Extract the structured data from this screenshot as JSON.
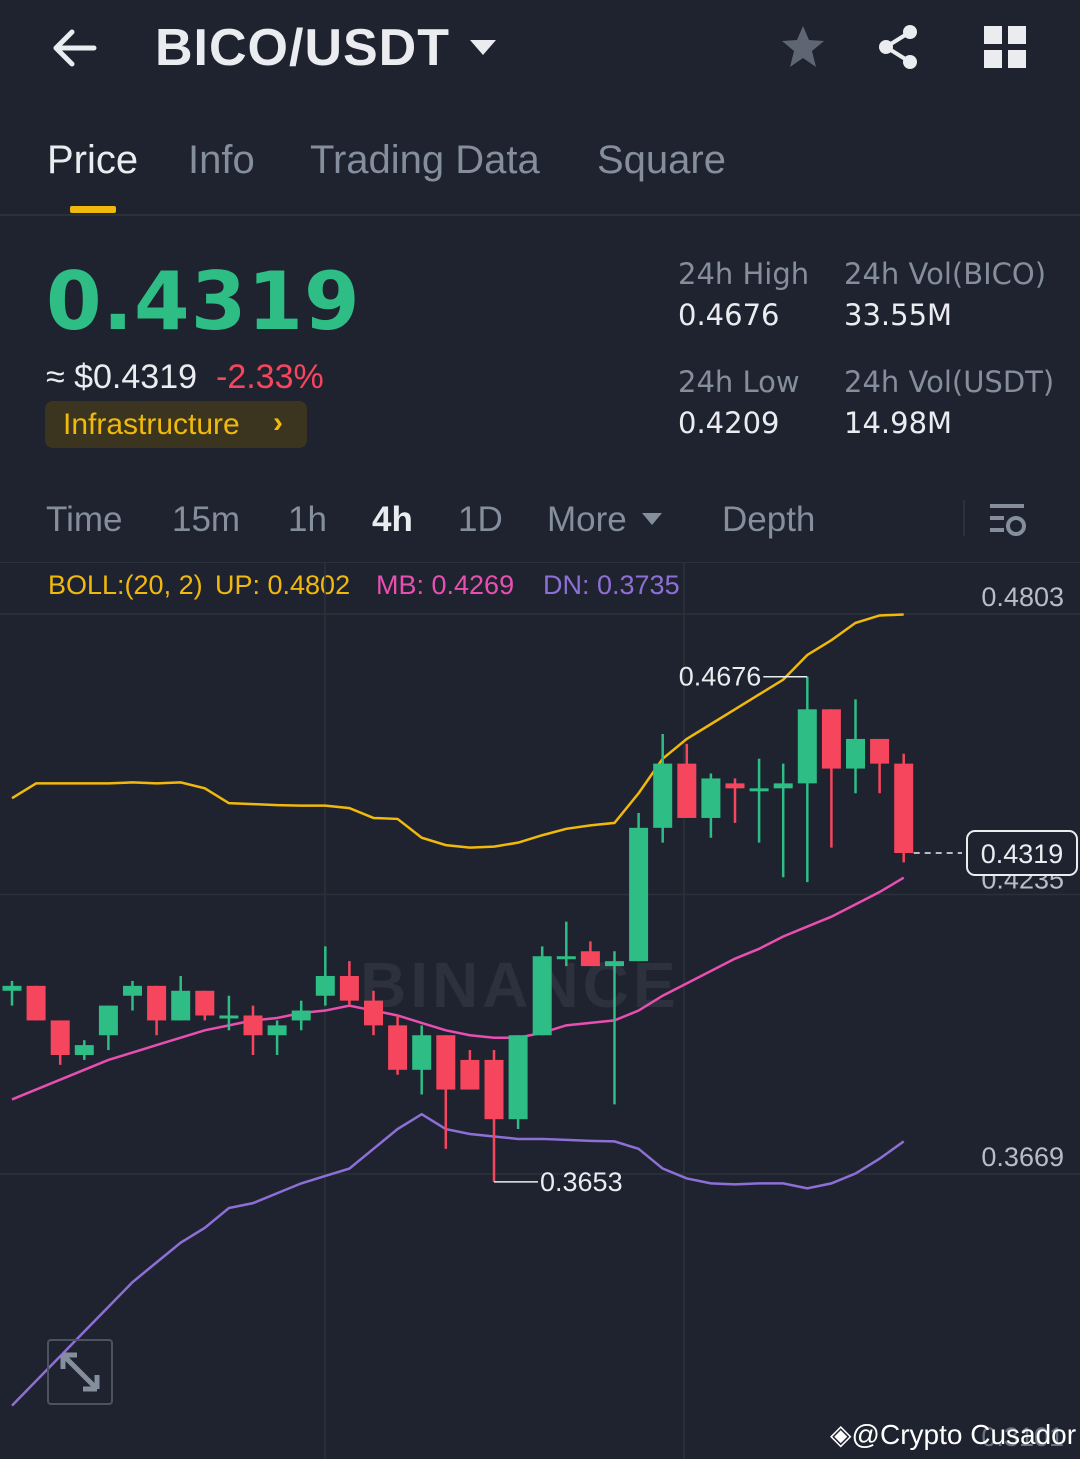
{
  "header": {
    "pair": "BICO/USDT",
    "back_icon": "arrow-left-icon",
    "caret_icon": "caret-down-icon",
    "star_icon": "star-icon",
    "share_icon": "share-icon",
    "menu_icon": "grid-icon"
  },
  "tabs": [
    {
      "label": "Price",
      "active": true
    },
    {
      "label": "Info",
      "active": false
    },
    {
      "label": "Trading Data",
      "active": false
    },
    {
      "label": "Square",
      "active": false
    }
  ],
  "price": {
    "last": "0.4319",
    "usd": "≈ $0.4319",
    "change": "-2.33%",
    "tag": "Infrastructure",
    "tag_arrow": "›",
    "stats": {
      "high_label": "24h High",
      "high_value": "0.4676",
      "low_label": "24h Low",
      "low_value": "0.4209",
      "vol_base_label": "24h Vol(BICO)",
      "vol_base_value": "33.55M",
      "vol_quote_label": "24h Vol(USDT)",
      "vol_quote_value": "14.98M"
    },
    "colors": {
      "up": "#2ebd85",
      "down": "#f6465d",
      "accent": "#f0b90b"
    }
  },
  "intervals": {
    "time": "Time",
    "m15": "15m",
    "h1": "1h",
    "h4": "4h",
    "d1": "1D",
    "more": "More",
    "depth": "Depth",
    "active": "4h"
  },
  "boll": {
    "label": "BOLL:(20, 2)",
    "up": "UP: 0.4802",
    "mb": "MB: 0.4269",
    "dn": "DN: 0.3735",
    "colors": {
      "up": "#f0b90b",
      "mb": "#e84fb1",
      "dn": "#8e6fd6"
    }
  },
  "chart_data": {
    "type": "candlestick",
    "y_ticks": [
      "0.4803",
      "0.4235",
      "0.3669"
    ],
    "bottom_tick": "0.3101",
    "high_marker": "0.4676",
    "low_marker": "0.3653",
    "current_price_label": "0.4319",
    "candles": [
      {
        "o": 0.404,
        "h": 0.406,
        "l": 0.401,
        "c": 0.405
      },
      {
        "o": 0.405,
        "h": 0.405,
        "l": 0.398,
        "c": 0.398
      },
      {
        "o": 0.398,
        "h": 0.398,
        "l": 0.389,
        "c": 0.391
      },
      {
        "o": 0.391,
        "h": 0.394,
        "l": 0.39,
        "c": 0.393
      },
      {
        "o": 0.395,
        "h": 0.401,
        "l": 0.392,
        "c": 0.401
      },
      {
        "o": 0.403,
        "h": 0.406,
        "l": 0.4,
        "c": 0.405
      },
      {
        "o": 0.405,
        "h": 0.405,
        "l": 0.395,
        "c": 0.398
      },
      {
        "o": 0.398,
        "h": 0.407,
        "l": 0.398,
        "c": 0.404
      },
      {
        "o": 0.404,
        "h": 0.404,
        "l": 0.398,
        "c": 0.399
      },
      {
        "o": 0.399,
        "h": 0.403,
        "l": 0.396,
        "c": 0.399
      },
      {
        "o": 0.399,
        "h": 0.401,
        "l": 0.391,
        "c": 0.395
      },
      {
        "o": 0.395,
        "h": 0.398,
        "l": 0.391,
        "c": 0.397
      },
      {
        "o": 0.398,
        "h": 0.402,
        "l": 0.396,
        "c": 0.4
      },
      {
        "o": 0.403,
        "h": 0.413,
        "l": 0.401,
        "c": 0.407
      },
      {
        "o": 0.407,
        "h": 0.41,
        "l": 0.401,
        "c": 0.402
      },
      {
        "o": 0.402,
        "h": 0.404,
        "l": 0.395,
        "c": 0.397
      },
      {
        "o": 0.397,
        "h": 0.399,
        "l": 0.387,
        "c": 0.388
      },
      {
        "o": 0.388,
        "h": 0.397,
        "l": 0.383,
        "c": 0.395
      },
      {
        "o": 0.395,
        "h": 0.395,
        "l": 0.372,
        "c": 0.384
      },
      {
        "o": 0.39,
        "h": 0.392,
        "l": 0.384,
        "c": 0.384
      },
      {
        "o": 0.39,
        "h": 0.392,
        "l": 0.3653,
        "c": 0.378
      },
      {
        "o": 0.378,
        "h": 0.395,
        "l": 0.376,
        "c": 0.395
      },
      {
        "o": 0.395,
        "h": 0.413,
        "l": 0.395,
        "c": 0.411
      },
      {
        "o": 0.411,
        "h": 0.418,
        "l": 0.409,
        "c": 0.411
      },
      {
        "o": 0.412,
        "h": 0.414,
        "l": 0.409,
        "c": 0.409
      },
      {
        "o": 0.409,
        "h": 0.412,
        "l": 0.381,
        "c": 0.41
      },
      {
        "o": 0.41,
        "h": 0.44,
        "l": 0.41,
        "c": 0.437
      },
      {
        "o": 0.437,
        "h": 0.456,
        "l": 0.434,
        "c": 0.45
      },
      {
        "o": 0.45,
        "h": 0.454,
        "l": 0.439,
        "c": 0.439
      },
      {
        "o": 0.439,
        "h": 0.448,
        "l": 0.435,
        "c": 0.447
      },
      {
        "o": 0.446,
        "h": 0.447,
        "l": 0.438,
        "c": 0.445
      },
      {
        "o": 0.445,
        "h": 0.451,
        "l": 0.434,
        "c": 0.445
      },
      {
        "o": 0.445,
        "h": 0.45,
        "l": 0.427,
        "c": 0.446
      },
      {
        "o": 0.446,
        "h": 0.4676,
        "l": 0.426,
        "c": 0.461
      },
      {
        "o": 0.461,
        "h": 0.461,
        "l": 0.433,
        "c": 0.449
      },
      {
        "o": 0.449,
        "h": 0.463,
        "l": 0.444,
        "c": 0.455
      },
      {
        "o": 0.455,
        "h": 0.455,
        "l": 0.444,
        "c": 0.45
      },
      {
        "o": 0.45,
        "h": 0.452,
        "l": 0.43,
        "c": 0.4319
      }
    ],
    "boll_up": [
      0.443,
      0.446,
      0.446,
      0.446,
      0.446,
      0.4462,
      0.446,
      0.4462,
      0.445,
      0.442,
      0.4418,
      0.4416,
      0.4415,
      0.4415,
      0.441,
      0.439,
      0.4388,
      0.435,
      0.4335,
      0.433,
      0.4332,
      0.434,
      0.4355,
      0.4368,
      0.4375,
      0.438,
      0.444,
      0.451,
      0.455,
      0.458,
      0.461,
      0.464,
      0.467,
      0.472,
      0.475,
      0.4785,
      0.48,
      0.4802
    ],
    "boll_mb": [
      0.382,
      0.384,
      0.386,
      0.388,
      0.39,
      0.3915,
      0.393,
      0.3945,
      0.396,
      0.397,
      0.398,
      0.3985,
      0.3995,
      0.4,
      0.401,
      0.4,
      0.399,
      0.3975,
      0.396,
      0.395,
      0.3945,
      0.3945,
      0.3955,
      0.397,
      0.3975,
      0.398,
      0.4,
      0.403,
      0.4055,
      0.408,
      0.4105,
      0.4125,
      0.415,
      0.417,
      0.419,
      0.4215,
      0.424,
      0.4269
    ],
    "boll_dn": [
      0.32,
      0.325,
      0.33,
      0.335,
      0.34,
      0.345,
      0.349,
      0.353,
      0.356,
      0.36,
      0.361,
      0.363,
      0.365,
      0.3665,
      0.368,
      0.372,
      0.376,
      0.379,
      0.376,
      0.375,
      0.3745,
      0.374,
      0.374,
      0.3738,
      0.3736,
      0.3735,
      0.372,
      0.368,
      0.366,
      0.365,
      0.3648,
      0.365,
      0.365,
      0.364,
      0.365,
      0.367,
      0.37,
      0.3735
    ]
  },
  "footer": {
    "watermark": "BINANCE",
    "credit": "@Crypto Cusador"
  }
}
